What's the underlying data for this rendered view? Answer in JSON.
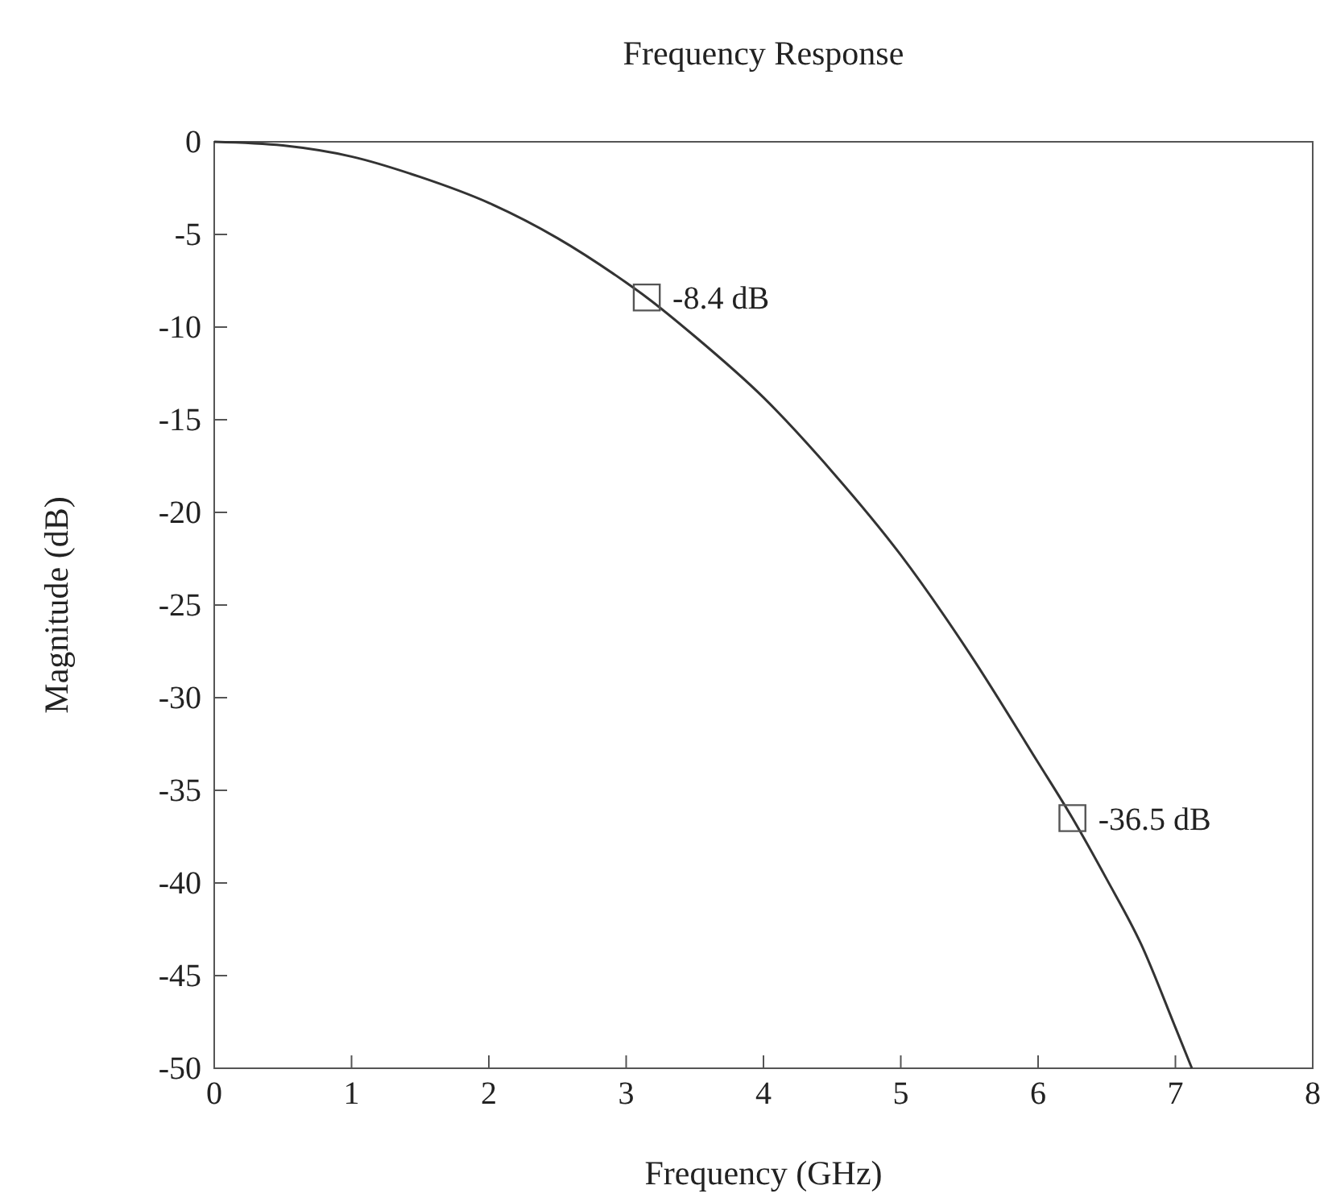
{
  "chart_data": {
    "type": "line",
    "title": "Frequency Response",
    "xlabel": "Frequency (GHz)",
    "ylabel": "Magnitude (dB)",
    "xlim": [
      0,
      8
    ],
    "ylim": [
      -50,
      0
    ],
    "xticks": [
      0,
      1,
      2,
      3,
      4,
      5,
      6,
      7,
      8
    ],
    "yticks": [
      0,
      -5,
      -10,
      -15,
      -20,
      -25,
      -30,
      -35,
      -40,
      -45,
      -50
    ],
    "grid": false,
    "series": [
      {
        "color": "#333333",
        "x": [
          0,
          0.5,
          1,
          1.5,
          2,
          2.5,
          3,
          3.15,
          3.5,
          4,
          4.5,
          5,
          5.5,
          6,
          6.25,
          6.5,
          6.75,
          7,
          7.12
        ],
        "values": [
          0,
          -0.2,
          -0.8,
          -1.9,
          -3.3,
          -5.2,
          -7.6,
          -8.4,
          -10.5,
          -13.8,
          -17.8,
          -22.3,
          -27.6,
          -33.5,
          -36.5,
          -39.8,
          -43.3,
          -47.8,
          -50
        ]
      },
      {
        "type": "scatter",
        "color": "#555555",
        "marker": "square",
        "x": [
          3.15,
          6.25
        ],
        "values": [
          -8.4,
          -36.5
        ]
      }
    ],
    "annotations": [
      {
        "text": "-8.4 dB",
        "x": 3.15,
        "y": -8.4
      },
      {
        "text": "-36.5 dB",
        "x": 6.25,
        "y": -36.5
      }
    ]
  }
}
